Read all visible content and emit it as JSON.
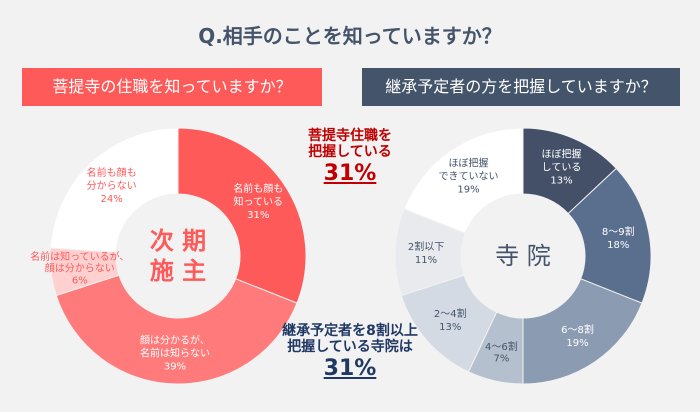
{
  "title": "Q.相手のことを知っていますか？",
  "left_header": "菩提寺の住職を知っていますか？",
  "right_header": "継承予定者の方を把握していますか？",
  "annotation_left": {
    "line1": "菩提寺住職を",
    "line2": "把握している",
    "value": "31%"
  },
  "annotation_right": {
    "line1": "継承予定者を8割以上",
    "line2": "把握している寺院は",
    "value": "31%"
  },
  "chart_data": [
    {
      "type": "pie",
      "donut": true,
      "center_label": [
        "次 期",
        "施 主"
      ],
      "slices": [
        {
          "label": [
            "名前も顔も",
            "知っている"
          ],
          "value": 31,
          "color": "#ff5a5a",
          "text": "#ffffff"
        },
        {
          "label": [
            "顔は分かるが、",
            "名前は知らない"
          ],
          "value": 39,
          "color": "#ff7a7a",
          "text": "#ffffff"
        },
        {
          "label": [
            "名前は知っているが、",
            "顔は分からない"
          ],
          "value": 6,
          "color": "#ffd0d0",
          "text": "#ff5a5a"
        },
        {
          "label": [
            "名前も顔も",
            "分からない"
          ],
          "value": 24,
          "color": "#ffffff",
          "text": "#ff5a5a"
        }
      ]
    },
    {
      "type": "pie",
      "donut": true,
      "center_label": [
        "寺 院"
      ],
      "slices": [
        {
          "label": [
            "ほぼ把握",
            "している"
          ],
          "value": 13,
          "color": "#435068",
          "text": "#ffffff"
        },
        {
          "label": [
            "8～9割"
          ],
          "value": 18,
          "color": "#5a6e8e",
          "text": "#ffffff"
        },
        {
          "label": [
            "6～8割"
          ],
          "value": 19,
          "color": "#8a9bb2",
          "text": "#ffffff"
        },
        {
          "label": [
            "4～6割"
          ],
          "value": 7,
          "color": "#b4c0cd",
          "text": "#44546a"
        },
        {
          "label": [
            "2～4割"
          ],
          "value": 13,
          "color": "#d3dae3",
          "text": "#44546a"
        },
        {
          "label": [
            "2割以下"
          ],
          "value": 11,
          "color": "#e8eaed",
          "text": "#44546a"
        },
        {
          "label": [
            "ほぼ把握",
            "できていない"
          ],
          "value": 19,
          "color": "#ffffff",
          "text": "#44546a"
        }
      ]
    }
  ]
}
